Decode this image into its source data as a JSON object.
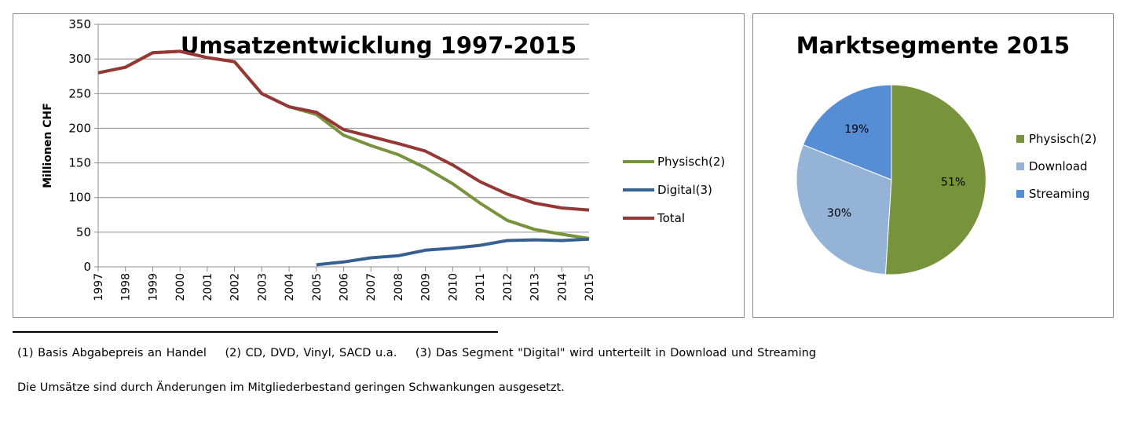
{
  "chart_data": [
    {
      "type": "line",
      "title": "Umsatzentwicklung 1997-2015",
      "ylabel": "Millionen CHF",
      "xlabel": "",
      "ylim": [
        0,
        350
      ],
      "y_ticks": [
        "0",
        "50",
        "100",
        "150",
        "200",
        "250",
        "300",
        "350"
      ],
      "categories": [
        "1997",
        "1998",
        "1999",
        "2000",
        "2001",
        "2002",
        "2003",
        "2004",
        "2005",
        "2006",
        "2007",
        "2008",
        "2009",
        "2010",
        "2011",
        "2012",
        "2013",
        "2014",
        "2015"
      ],
      "grid": "horizontal",
      "legend_position": "right",
      "series": [
        {
          "name": "Physisch(2)",
          "color": "#77933c",
          "values": [
            280,
            288,
            309,
            311,
            302,
            296,
            250,
            231,
            220,
            190,
            175,
            162,
            143,
            120,
            92,
            67,
            54,
            47,
            41
          ]
        },
        {
          "name": "Digital(3)",
          "color": "#376092",
          "values": [
            null,
            null,
            null,
            null,
            null,
            null,
            null,
            null,
            3,
            7,
            13,
            16,
            24,
            27,
            31,
            38,
            39,
            38,
            40
          ]
        },
        {
          "name": "Total",
          "color": "#953735",
          "values": [
            280,
            288,
            309,
            311,
            302,
            296,
            250,
            231,
            223,
            198,
            188,
            178,
            167,
            147,
            123,
            105,
            92,
            85,
            82
          ]
        }
      ]
    },
    {
      "type": "pie",
      "title": "Marktsegmente 2015",
      "legend_position": "right",
      "slices": [
        {
          "name": "Physisch(2)",
          "value": 51,
          "label": "51%",
          "color": "#77933c"
        },
        {
          "name": "Download",
          "value": 30,
          "label": "30%",
          "color": "#95b3d7"
        },
        {
          "name": "Streaming",
          "value": 19,
          "label": "19%",
          "color": "#558ed5"
        }
      ]
    }
  ],
  "footnotes": {
    "note1": "(1) Basis Abgabepreis an Handel",
    "note2": "(2) CD, DVD, Vinyl, SACD u.a.",
    "note3": "(3) Das Segment \"Digital\" wird unterteilt in Download und Streaming",
    "remark": "Die Umsätze sind durch Änderungen im Mitgliederbestand geringen Schwankungen ausgesetzt."
  }
}
